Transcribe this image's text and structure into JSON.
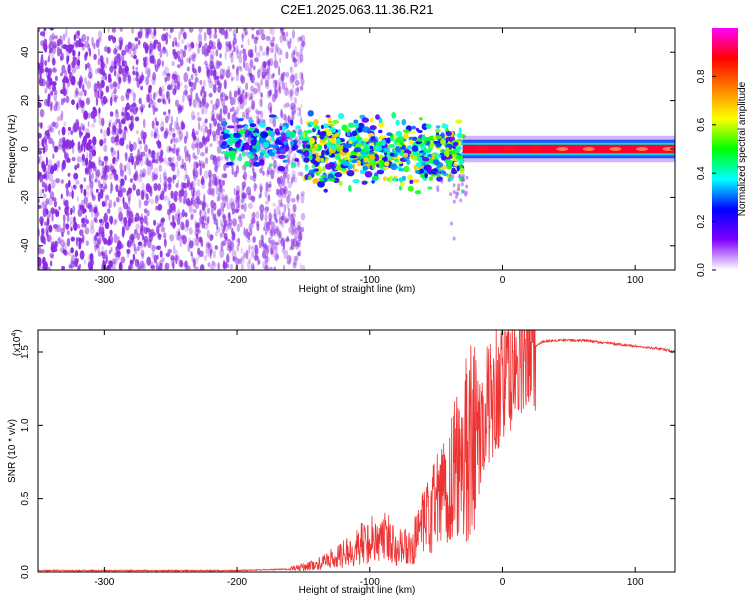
{
  "title": "C2E1.2025.063.11.36.R21",
  "chart_data": [
    {
      "type": "heatmap",
      "title": "C2E1.2025.063.11.36.R21",
      "xlabel": "Height of straight line (km)",
      "ylabel": "Frequency (Hz)",
      "xlim": [
        -350,
        130
      ],
      "ylim": [
        -50,
        50
      ],
      "xticks": [
        -300,
        -200,
        -100,
        0,
        100
      ],
      "xtick_labels": [
        "-300",
        "-200",
        "-100",
        "0",
        "100"
      ],
      "yticks": [
        -40,
        -20,
        0,
        20,
        40
      ],
      "ytick_labels": [
        "-40",
        "-20",
        "0",
        "20",
        "40"
      ],
      "colorbar": {
        "label": "Normalized spectral amplitude",
        "range": [
          0,
          1
        ],
        "ticks": [
          0.0,
          0.2,
          0.4,
          0.6,
          0.8
        ],
        "tick_labels": [
          "0.0",
          "0.2",
          "0.4",
          "0.6",
          "0.8"
        ],
        "colors": [
          "#ffffff",
          "#8000ff",
          "#0000ff",
          "#00ffff",
          "#00ff00",
          "#ffff00",
          "#ff8000",
          "#ff0000",
          "#ff00ff"
        ]
      },
      "regions": [
        {
          "name": "noise",
          "x_range": [
            -350,
            -150
          ],
          "freq_range": [
            -50,
            50
          ],
          "amplitude": 0.1
        },
        {
          "name": "onset",
          "x_range": [
            -210,
            -150
          ],
          "freq_range": [
            -5,
            10
          ],
          "amplitude": 0.35
        },
        {
          "name": "carrier-noisy",
          "x_range": [
            -150,
            -30
          ],
          "freq_range": [
            -10,
            10
          ],
          "amplitude": 0.5
        },
        {
          "name": "carrier-clean",
          "x_range": [
            -30,
            130
          ],
          "freq_range": [
            -3,
            3
          ],
          "amplitude": 0.9
        }
      ]
    },
    {
      "type": "line",
      "xlabel": "Height of straight line (km)",
      "ylabel": "SNR (10 * v/v)",
      "scale_note": "(x10",
      "scale_exp": "4",
      "scale_close": ")",
      "xlim": [
        -350,
        130
      ],
      "ylim": [
        0,
        1.65
      ],
      "xticks": [
        -300,
        -200,
        -100,
        0,
        100
      ],
      "xtick_labels": [
        "-300",
        "-200",
        "-100",
        "0",
        "100"
      ],
      "yticks": [
        0.0,
        0.5,
        1.0,
        1.5
      ],
      "ytick_labels": [
        "0.0",
        "0.5",
        "1.0",
        "1.5"
      ],
      "series": [
        {
          "name": "SNR",
          "color": "#ee3333",
          "x": [
            -350,
            -300,
            -250,
            -200,
            -160,
            -140,
            -120,
            -100,
            -90,
            -80,
            -70,
            -60,
            -50,
            -40,
            -30,
            -20,
            -15,
            -10,
            -5,
            0,
            5,
            10,
            15,
            20,
            25,
            30,
            40,
            60,
            80,
            100,
            120,
            130
          ],
          "y": [
            0.01,
            0.01,
            0.01,
            0.01,
            0.02,
            0.05,
            0.12,
            0.22,
            0.24,
            0.2,
            0.15,
            0.3,
            0.45,
            0.6,
            0.8,
            1.0,
            0.95,
            1.2,
            1.25,
            1.3,
            1.35,
            1.4,
            1.45,
            1.5,
            1.54,
            1.57,
            1.58,
            1.58,
            1.56,
            1.54,
            1.52,
            1.5
          ]
        }
      ]
    }
  ]
}
